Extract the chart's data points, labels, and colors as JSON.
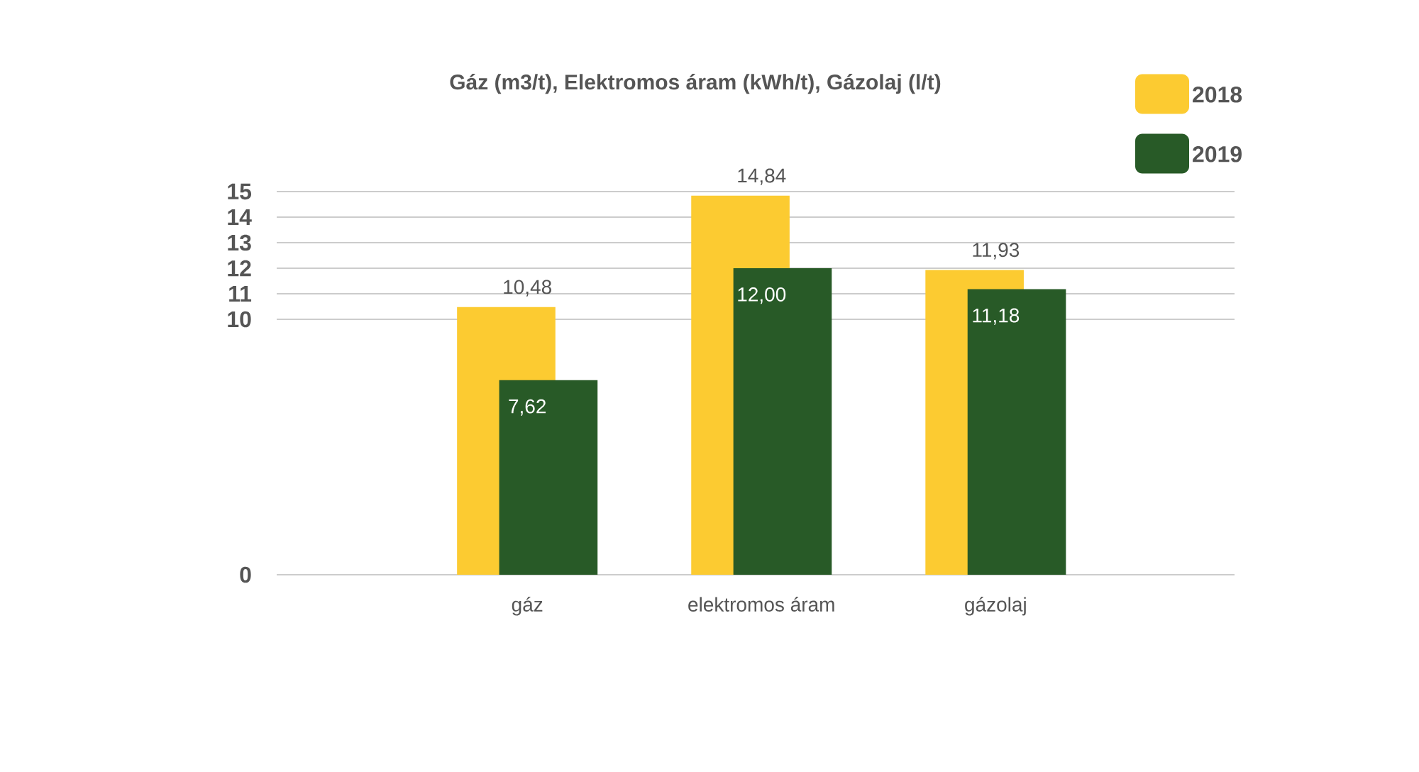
{
  "chart_data": {
    "type": "bar",
    "title": "Gáz (m3/t), Elektromos áram (kWh/t), Gázolaj (l/t)",
    "categories": [
      "gáz",
      "elektromos áram",
      "gázolaj"
    ],
    "series": [
      {
        "name": "2018",
        "color": "#fccb31",
        "values": [
          10.48,
          14.84,
          11.93
        ],
        "value_labels": [
          "10,48",
          "14,84",
          "11,93"
        ]
      },
      {
        "name": "2019",
        "color": "#285a27",
        "values": [
          7.62,
          12.0,
          11.18
        ],
        "value_labels": [
          "7,62",
          "12,00",
          "11,18"
        ]
      }
    ],
    "ylim": [
      0,
      15
    ],
    "yticks": [
      0,
      10,
      11,
      12,
      13,
      14,
      15
    ],
    "grid": "y",
    "legend": "top right"
  }
}
